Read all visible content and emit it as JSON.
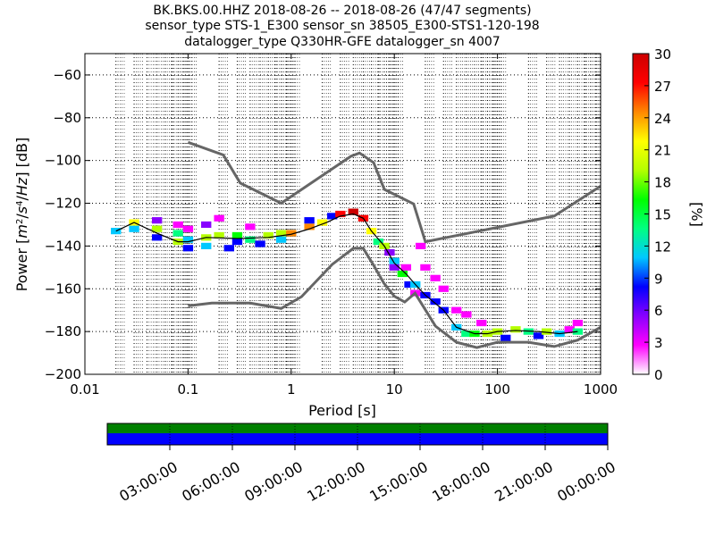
{
  "chart_data": {
    "type": "heatmap",
    "title_lines": [
      "BK.BKS.00.HHZ   2018-08-26 -- 2018-08-26  (47/47 segments)",
      "sensor_type STS-1_E300 sensor_sn 38505_E300-STS1-120-198",
      "datalogger_type Q330HR-GFE datalogger_sn 4007"
    ],
    "xlabel": "Period [s]",
    "ylabel_parts": [
      "Power [",
      "m",
      "2",
      "/",
      "s",
      "4",
      "/",
      "Hz",
      "] [dB]"
    ],
    "x_scale": "log",
    "xlim": [
      0.01,
      1000
    ],
    "ylim": [
      -200,
      -50
    ],
    "x_ticks": [
      {
        "value": 0.01,
        "label": "0.01"
      },
      {
        "value": 0.1,
        "label": "0.1"
      },
      {
        "value": 1,
        "label": "1"
      },
      {
        "value": 10,
        "label": "10"
      },
      {
        "value": 100,
        "label": "100"
      },
      {
        "value": 1000,
        "label": "1000"
      }
    ],
    "y_ticks": [
      {
        "value": -200,
        "label": "−200"
      },
      {
        "value": -180,
        "label": "−180"
      },
      {
        "value": -160,
        "label": "−160"
      },
      {
        "value": -140,
        "label": "−140"
      },
      {
        "value": -120,
        "label": "−120"
      },
      {
        "value": -100,
        "label": "−100"
      },
      {
        "value": -80,
        "label": "−80"
      },
      {
        "value": -60,
        "label": "−60"
      }
    ],
    "grid": true,
    "colorbar": {
      "label": "[%]",
      "range": [
        0,
        30
      ],
      "ticks": [
        {
          "value": 0,
          "label": "0"
        },
        {
          "value": 3,
          "label": "3"
        },
        {
          "value": 6,
          "label": "6"
        },
        {
          "value": 9,
          "label": "9"
        },
        {
          "value": 12,
          "label": "12"
        },
        {
          "value": 15,
          "label": "15"
        },
        {
          "value": 18,
          "label": "18"
        },
        {
          "value": 21,
          "label": "21"
        },
        {
          "value": 24,
          "label": "24"
        },
        {
          "value": 27,
          "label": "27"
        },
        {
          "value": 30,
          "label": "30"
        }
      ],
      "colors": [
        "#ffffff",
        "#ff00ff",
        "#8800ff",
        "#0000ff",
        "#00c8ff",
        "#00ff80",
        "#00ff00",
        "#b4ff00",
        "#ffff00",
        "#ff8800",
        "#ff0000",
        "#cc0000"
      ]
    },
    "noise_models": [
      {
        "name": "high",
        "points": [
          [
            0.1,
            -91.5
          ],
          [
            0.22,
            -97.4
          ],
          [
            0.32,
            -110.5
          ],
          [
            0.8,
            -120
          ],
          [
            3.8,
            -98
          ],
          [
            4.6,
            -96.5
          ],
          [
            6.3,
            -101
          ],
          [
            8,
            -113.5
          ],
          [
            15.4,
            -120.3
          ],
          [
            20,
            -138
          ],
          [
            354.8,
            -126
          ],
          [
            1000,
            -112
          ]
        ]
      },
      {
        "name": "low",
        "points": [
          [
            0.1,
            -168
          ],
          [
            0.17,
            -166.7
          ],
          [
            0.4,
            -166.7
          ],
          [
            0.8,
            -169.2
          ],
          [
            1.26,
            -163.7
          ],
          [
            2.5,
            -148.6
          ],
          [
            4,
            -141.1
          ],
          [
            5,
            -141.1
          ],
          [
            6.3,
            -149
          ],
          [
            7.9,
            -157.3
          ],
          [
            10,
            -163.5
          ],
          [
            12.6,
            -166.2
          ],
          [
            15.9,
            -162.1
          ],
          [
            25.1,
            -177.5
          ],
          [
            40,
            -185
          ],
          [
            63.1,
            -187.5
          ],
          [
            100,
            -185
          ],
          [
            200,
            -185
          ],
          [
            354.8,
            -187
          ],
          [
            600,
            -184
          ],
          [
            1000,
            -178
          ]
        ]
      }
    ],
    "mode_points": [
      [
        0.02,
        -133
      ],
      [
        0.03,
        -129
      ],
      [
        0.05,
        -134
      ],
      [
        0.08,
        -138
      ],
      [
        0.1,
        -138
      ],
      [
        0.15,
        -136
      ],
      [
        0.3,
        -136.5
      ],
      [
        0.6,
        -136
      ],
      [
        1,
        -134.5
      ],
      [
        1.5,
        -132
      ],
      [
        2.2,
        -129
      ],
      [
        3,
        -126
      ],
      [
        4,
        -125
      ],
      [
        5,
        -127
      ],
      [
        6,
        -133
      ],
      [
        8,
        -140
      ],
      [
        10,
        -148
      ],
      [
        13,
        -153
      ],
      [
        16,
        -158
      ],
      [
        20,
        -163
      ],
      [
        30,
        -170
      ],
      [
        40,
        -178
      ],
      [
        60,
        -181
      ],
      [
        80,
        -181
      ],
      [
        100,
        -180
      ],
      [
        150,
        -179.5
      ],
      [
        250,
        -180
      ],
      [
        400,
        -181
      ],
      [
        600,
        -180
      ]
    ],
    "psd_density_cells": [
      [
        0.02,
        -133,
        12
      ],
      [
        0.03,
        -129,
        22
      ],
      [
        0.03,
        -132,
        10
      ],
      [
        0.05,
        -128,
        6
      ],
      [
        0.05,
        -132,
        20
      ],
      [
        0.05,
        -136,
        8
      ],
      [
        0.08,
        -130,
        4
      ],
      [
        0.08,
        -134,
        14
      ],
      [
        0.08,
        -138,
        20
      ],
      [
        0.1,
        -132,
        3
      ],
      [
        0.1,
        -137,
        12
      ],
      [
        0.1,
        -141,
        8
      ],
      [
        0.15,
        -130,
        5
      ],
      [
        0.15,
        -136,
        18
      ],
      [
        0.15,
        -140,
        10
      ],
      [
        0.2,
        -127,
        3
      ],
      [
        0.2,
        -135,
        20
      ],
      [
        0.25,
        -141,
        8
      ],
      [
        0.3,
        -135,
        16
      ],
      [
        0.3,
        -138,
        9
      ],
      [
        0.4,
        -131,
        4
      ],
      [
        0.4,
        -137,
        14
      ],
      [
        0.5,
        -139,
        8
      ],
      [
        0.6,
        -135,
        18
      ],
      [
        0.8,
        -134,
        20
      ],
      [
        0.8,
        -137,
        11
      ],
      [
        1,
        -134,
        24
      ],
      [
        1.5,
        -131,
        25
      ],
      [
        1.5,
        -128,
        8
      ],
      [
        2,
        -129,
        22
      ],
      [
        2.5,
        -126,
        9
      ],
      [
        3,
        -125,
        28
      ],
      [
        4,
        -124,
        30
      ],
      [
        5,
        -127,
        26
      ],
      [
        6,
        -133,
        22
      ],
      [
        7,
        -138,
        14
      ],
      [
        8,
        -140,
        18
      ],
      [
        9,
        -143,
        6
      ],
      [
        10,
        -147,
        12
      ],
      [
        10,
        -150,
        5
      ],
      [
        12,
        -153,
        15
      ],
      [
        13,
        -150,
        4
      ],
      [
        14,
        -158,
        8
      ],
      [
        16,
        -158,
        12
      ],
      [
        16,
        -162,
        4
      ],
      [
        18,
        -140,
        3
      ],
      [
        20,
        -163,
        9
      ],
      [
        20,
        -150,
        3
      ],
      [
        25,
        -166,
        7
      ],
      [
        25,
        -155,
        3
      ],
      [
        30,
        -170,
        9
      ],
      [
        30,
        -160,
        3
      ],
      [
        40,
        -178,
        10
      ],
      [
        40,
        -170,
        4
      ],
      [
        50,
        -181,
        14
      ],
      [
        50,
        -172,
        3
      ],
      [
        60,
        -181,
        16
      ],
      [
        70,
        -176,
        4
      ],
      [
        80,
        -181,
        18
      ],
      [
        100,
        -180,
        20
      ],
      [
        120,
        -183,
        9
      ],
      [
        150,
        -179,
        18
      ],
      [
        200,
        -180,
        14
      ],
      [
        250,
        -182,
        8
      ],
      [
        300,
        -180,
        18
      ],
      [
        400,
        -181,
        12
      ],
      [
        500,
        -179,
        4
      ],
      [
        600,
        -180,
        14
      ],
      [
        600,
        -176,
        3
      ]
    ]
  },
  "timeline": {
    "labels": [
      "03:00:00",
      "06:00:00",
      "09:00:00",
      "12:00:00",
      "15:00:00",
      "18:00:00",
      "21:00:00",
      "00:00:00"
    ],
    "top_band_color": "#008000",
    "bottom_band_color": "#0000ff"
  }
}
